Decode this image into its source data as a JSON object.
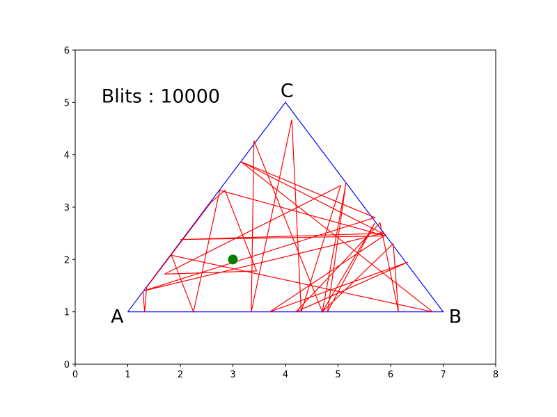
{
  "chart_data": {
    "type": "line",
    "title": "",
    "xlabel": "",
    "ylabel": "",
    "xlim": [
      0,
      8
    ],
    "ylim": [
      0,
      6
    ],
    "xticks": [
      "0",
      "1",
      "2",
      "3",
      "4",
      "5",
      "6",
      "7",
      "8"
    ],
    "yticks": [
      "0",
      "1",
      "2",
      "3",
      "4",
      "5",
      "6"
    ],
    "grid": false,
    "annotations": {
      "counter_label": "Blits : 10000",
      "vertex_a": "A",
      "vertex_b": "B",
      "vertex_c": "C"
    },
    "colors": {
      "triangle": "#0000ff",
      "path": "#ff0000",
      "point": "#008000"
    },
    "series": [
      {
        "type": "polygon",
        "points": [
          [
            1,
            1
          ],
          [
            7,
            1
          ],
          [
            4,
            5
          ],
          [
            1,
            1
          ]
        ]
      },
      {
        "type": "polyline",
        "points": [
          [
            1.29,
            1.38
          ],
          [
            1.32,
            1.0
          ],
          [
            1.36,
            1.47
          ],
          [
            2.59,
            3.1
          ],
          [
            2.85,
            3.32
          ],
          [
            3.45,
            1.78
          ],
          [
            1.7,
            1.72
          ],
          [
            5.05,
            3.41
          ],
          [
            4.3,
            1.0
          ],
          [
            4.12,
            4.67
          ],
          [
            3.35,
            1.0
          ],
          [
            3.4,
            4.27
          ],
          [
            4.7,
            1.0
          ],
          [
            5.15,
            3.45
          ],
          [
            4.8,
            1.0
          ],
          [
            5.7,
            2.7
          ],
          [
            4.7,
            1.0
          ],
          [
            6.05,
            2.3
          ],
          [
            6.15,
            1.0
          ],
          [
            5.8,
            2.7
          ],
          [
            4.2,
            1.0
          ],
          [
            6.33,
            1.95
          ],
          [
            3.7,
            1.0
          ],
          [
            5.9,
            2.47
          ],
          [
            3.15,
            3.87
          ],
          [
            6.8,
            1.0
          ],
          [
            1.83,
            2.08
          ],
          [
            2.25,
            1.0
          ],
          [
            2.75,
            3.32
          ],
          [
            5.9,
            2.45
          ],
          [
            2.0,
            2.38
          ],
          [
            5.85,
            2.5
          ],
          [
            1.3,
            1.4
          ],
          [
            5.7,
            2.8
          ],
          [
            3.15,
            3.87
          ]
        ]
      },
      {
        "type": "point",
        "points": [
          [
            3.0,
            2.0
          ]
        ]
      }
    ]
  }
}
